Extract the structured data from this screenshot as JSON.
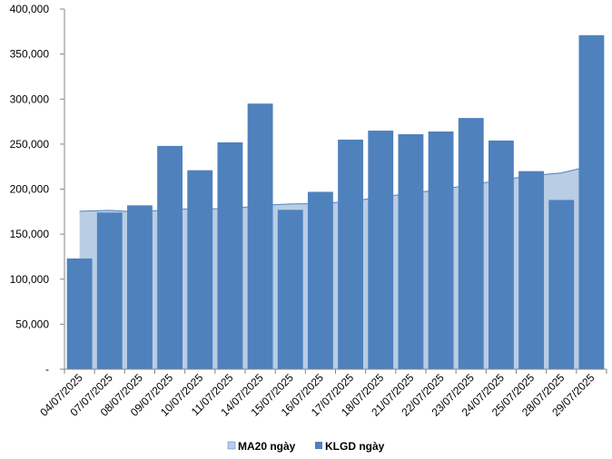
{
  "chart_data": {
    "type": "bar",
    "categories": [
      "04/07/2025",
      "07/07/2025",
      "08/07/2025",
      "09/07/2025",
      "10/07/2025",
      "11/07/2025",
      "14/07/2025",
      "15/07/2025",
      "16/07/2025",
      "17/07/2025",
      "18/07/2025",
      "21/07/2025",
      "22/07/2025",
      "23/07/2025",
      "24/07/2025",
      "25/07/2025",
      "28/07/2025",
      "29/07/2025"
    ],
    "ylim": [
      0,
      400000
    ],
    "yticks": [
      0,
      50000,
      100000,
      150000,
      200000,
      250000,
      300000,
      350000,
      400000
    ],
    "ytick_labels": [
      "-",
      "50,000",
      "100,000",
      "150,000",
      "200,000",
      "250,000",
      "300,000",
      "350,000",
      "400,000"
    ],
    "grid": false,
    "legend_position": "bottom",
    "series": [
      {
        "name": "MA20 ngày",
        "type": "area",
        "color": "#b9cde5",
        "line_color": "#4f81bd",
        "values": [
          175500,
          176500,
          174500,
          177500,
          178500,
          178000,
          182000,
          183500,
          184000,
          186500,
          191000,
          195500,
          199500,
          205000,
          210000,
          215000,
          218000,
          226000
        ]
      },
      {
        "name": "KLGD ngày",
        "type": "bar",
        "color": "#4f81bd",
        "values": [
          123000,
          174000,
          182000,
          248000,
          221000,
          252000,
          295000,
          177000,
          197000,
          255000,
          265000,
          261000,
          264000,
          279000,
          254000,
          220000,
          188000,
          371000
        ]
      }
    ]
  }
}
